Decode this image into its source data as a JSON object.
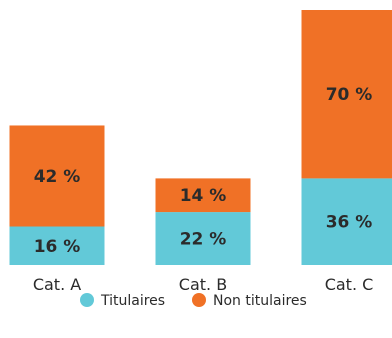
{
  "chart_data": {
    "type": "bar",
    "stacked": true,
    "categories": [
      "Cat. A",
      "Cat. B",
      "Cat. C"
    ],
    "series": [
      {
        "name": "Titulaires",
        "values": [
          16,
          22,
          36
        ],
        "labels": [
          "16 %",
          "22 %",
          "36 %"
        ],
        "color": "#62c9d8"
      },
      {
        "name": "Non titulaires",
        "values": [
          42,
          14,
          70
        ],
        "labels": [
          "42 %",
          "14 %",
          "70 %"
        ],
        "color": "#f07126"
      }
    ],
    "title": "",
    "xlabel": "",
    "ylabel": "",
    "ylim": [
      0,
      106
    ],
    "grid": false,
    "legend": "bottom-center"
  }
}
